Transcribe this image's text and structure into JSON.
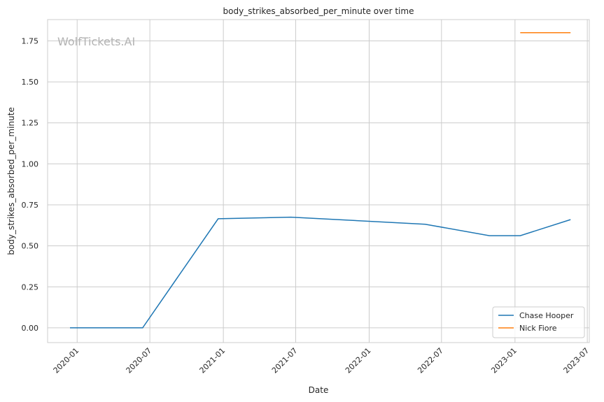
{
  "chart_data": {
    "type": "line",
    "title": "body_strikes_absorbed_per_minute over time",
    "xlabel": "Date",
    "ylabel": "body_strikes_absorbed_per_minute",
    "watermark": "WolfTickets.AI",
    "xlim": [
      "2019-10-19",
      "2023-07-06"
    ],
    "ylim": [
      -0.09,
      1.88
    ],
    "x_ticks": [
      "2020-01",
      "2020-07",
      "2021-01",
      "2021-07",
      "2022-01",
      "2022-07",
      "2023-01",
      "2023-07"
    ],
    "y_ticks": [
      "0.00",
      "0.25",
      "0.50",
      "0.75",
      "1.00",
      "1.25",
      "1.50",
      "1.75"
    ],
    "grid": true,
    "legend_position": "bottom-right",
    "series": [
      {
        "name": "Chase Hooper",
        "color": "#1f77b4",
        "x": [
          "2019-12-14",
          "2020-06-13",
          "2020-12-19",
          "2021-06-19",
          "2022-05-21",
          "2022-10-29",
          "2023-01-14",
          "2023-05-20"
        ],
        "y": [
          0.0,
          0.0,
          0.665,
          0.675,
          0.632,
          0.562,
          0.562,
          0.66
        ]
      },
      {
        "name": "Nick Fiore",
        "color": "#ff7f0e",
        "x": [
          "2023-01-14",
          "2023-05-20"
        ],
        "y": [
          1.8,
          1.8
        ]
      }
    ]
  }
}
